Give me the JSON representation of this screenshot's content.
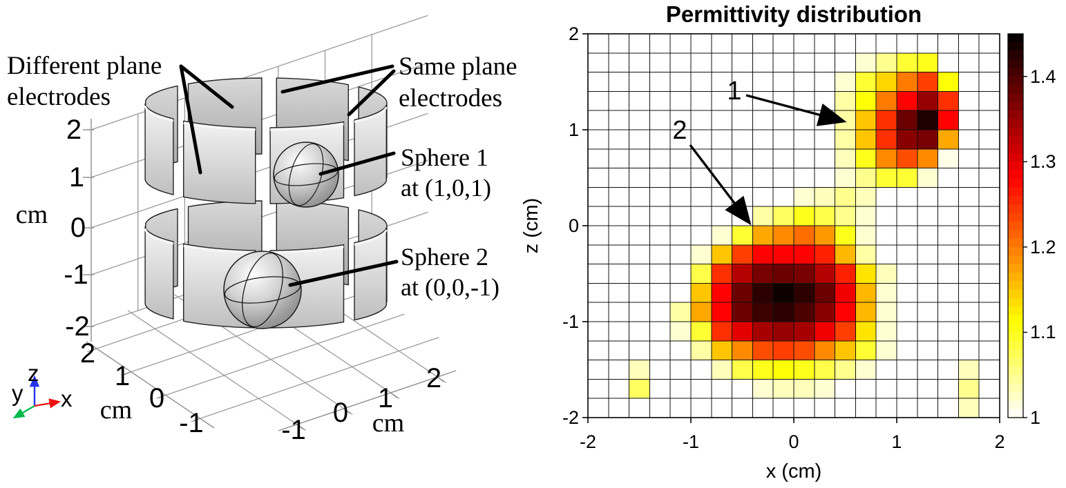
{
  "figure": {
    "left_panel": {
      "annotations": {
        "different_plane": {
          "line1": "Different plane",
          "line2": "electrodes"
        },
        "same_plane": {
          "line1": "Same plane",
          "line2": "electrodes"
        },
        "sphere1": {
          "line1": "Sphere 1",
          "line2": "at (1,0,1)"
        },
        "sphere2": {
          "line1": "Sphere 2",
          "line2": "at (0,0,-1)"
        }
      },
      "z_axis": {
        "unit": "cm",
        "ticks": [
          "2",
          "1",
          "0",
          "-1",
          "-2"
        ]
      },
      "y_axis": {
        "unit": "cm",
        "ticks": [
          "2",
          "1",
          "0",
          "-1"
        ]
      },
      "x_axis": {
        "unit": "cm",
        "ticks": [
          "-1",
          "0",
          "1",
          "2"
        ]
      },
      "triad": {
        "x_label": "x",
        "y_label": "y",
        "z_label": "z",
        "x_color": "#ee1111",
        "y_color": "#00b94d",
        "z_color": "#2233ee"
      }
    },
    "right_panel": {
      "title": "Permittivity distribution",
      "xlabel": "x (cm)",
      "ylabel": "z (cm)",
      "x_ticks": [
        "-2",
        "-1",
        "0",
        "1",
        "2"
      ],
      "z_ticks": [
        "2",
        "1",
        "0",
        "-1",
        "-2"
      ],
      "colorbar_ticks": [
        "1.4",
        "1.3",
        "1.2",
        "1.1",
        "1"
      ],
      "annotation_1": "1",
      "annotation_2": "2"
    }
  },
  "chart_data": {
    "type": "heatmap",
    "title": "Permittivity distribution",
    "xlabel": "x (cm)",
    "ylabel": "z (cm)",
    "x_range": [
      -2,
      2
    ],
    "z_range": [
      -2,
      2
    ],
    "grid_size": [
      20,
      20
    ],
    "cell_size_cm": 0.2,
    "color_range": [
      1,
      1.45
    ],
    "colormap": "reversed-hot (white -> yellow -> orange -> red -> black)",
    "colorbar_tick_values": [
      1,
      1.1,
      1.2,
      1.3,
      1.4
    ],
    "grid_on": true,
    "legend_position": "right-colorbar",
    "hotspots": [
      {
        "label": "1",
        "center_xz": [
          1.3,
          1.1
        ],
        "peak_value": 1.43
      },
      {
        "label": "2",
        "center_xz": [
          0.1,
          -0.7
        ],
        "peak_value": 1.44
      }
    ],
    "annotations": [
      {
        "label": "1",
        "text_xz": [
          -0.58,
          1.34
        ],
        "arrow_to_xz": [
          0.45,
          1.12
        ]
      },
      {
        "label": "2",
        "text_xz": [
          -1.11,
          0.93
        ],
        "arrow_to_xz": [
          -0.47,
          0.1
        ]
      }
    ],
    "values": [
      [
        1,
        1,
        1,
        1,
        1,
        1,
        1,
        1,
        1,
        1,
        1,
        1,
        1,
        1,
        1,
        1,
        1,
        1,
        1,
        1
      ],
      [
        1,
        1,
        1,
        1,
        1,
        1,
        1,
        1,
        1,
        1,
        1,
        1,
        1,
        1.02,
        1.05,
        1.09,
        1.1,
        1,
        1,
        1
      ],
      [
        1,
        1,
        1,
        1,
        1,
        1,
        1,
        1,
        1,
        1,
        1,
        1,
        1.02,
        1.09,
        1.14,
        1.2,
        1.24,
        1.11,
        1,
        1
      ],
      [
        1,
        1,
        1,
        1,
        1,
        1,
        1,
        1,
        1,
        1,
        1,
        1,
        1.04,
        1.11,
        1.2,
        1.28,
        1.35,
        1.25,
        1,
        1
      ],
      [
        1,
        1,
        1,
        1,
        1,
        1,
        1,
        1,
        1,
        1,
        1,
        1,
        1.04,
        1.15,
        1.25,
        1.38,
        1.43,
        1.28,
        1,
        1
      ],
      [
        1,
        1,
        1,
        1,
        1,
        1,
        1,
        1,
        1,
        1,
        1,
        1,
        1.04,
        1.15,
        1.25,
        1.36,
        1.37,
        1.17,
        1,
        1
      ],
      [
        1,
        1,
        1,
        1,
        1,
        1,
        1,
        1,
        1,
        1,
        1,
        1,
        1.03,
        1.1,
        1.19,
        1.23,
        1.19,
        1.01,
        1,
        1
      ],
      [
        1,
        1,
        1,
        1,
        1,
        1,
        1,
        1,
        1,
        1,
        1,
        1,
        1.02,
        1.05,
        1.09,
        1.09,
        1.02,
        1,
        1,
        1
      ],
      [
        1,
        1,
        1,
        1,
        1,
        1,
        1,
        1,
        1,
        1,
        1.02,
        1.03,
        1.05,
        1.03,
        1,
        1,
        1,
        1,
        1,
        1
      ],
      [
        1,
        1,
        1,
        1,
        1,
        1,
        1,
        1,
        1.04,
        1.07,
        1.1,
        1.08,
        1.05,
        1.02,
        1,
        1,
        1,
        1,
        1,
        1
      ],
      [
        1,
        1,
        1,
        1,
        1,
        1,
        1.02,
        1.09,
        1.17,
        1.19,
        1.21,
        1.18,
        1.1,
        1.02,
        1,
        1,
        1,
        1,
        1,
        1
      ],
      [
        1,
        1,
        1,
        1,
        1,
        1.02,
        1.15,
        1.24,
        1.28,
        1.28,
        1.28,
        1.26,
        1.16,
        1.04,
        1,
        1,
        1,
        1,
        1,
        1
      ],
      [
        1,
        1,
        1,
        1,
        1,
        1.08,
        1.25,
        1.33,
        1.37,
        1.38,
        1.37,
        1.33,
        1.26,
        1.13,
        1.03,
        1,
        1,
        1,
        1,
        1
      ],
      [
        1,
        1,
        1,
        1,
        1,
        1.15,
        1.28,
        1.38,
        1.42,
        1.44,
        1.42,
        1.38,
        1.29,
        1.16,
        1.02,
        1,
        1,
        1,
        1,
        1
      ],
      [
        1,
        1,
        1,
        1,
        1.04,
        1.17,
        1.28,
        1.38,
        1.41,
        1.42,
        1.4,
        1.36,
        1.28,
        1.16,
        1.02,
        1,
        1,
        1,
        1,
        1
      ],
      [
        1,
        1,
        1,
        1,
        1.02,
        1.09,
        1.25,
        1.3,
        1.34,
        1.35,
        1.34,
        1.29,
        1.24,
        1.13,
        1.02,
        1,
        1,
        1,
        1,
        1
      ],
      [
        1,
        1,
        1,
        1,
        1,
        1.04,
        1.15,
        1.19,
        1.23,
        1.24,
        1.23,
        1.19,
        1.15,
        1.09,
        1.02,
        1,
        1,
        1,
        1,
        1
      ],
      [
        1,
        1,
        1.03,
        1,
        1,
        1,
        1.03,
        1.08,
        1.1,
        1.11,
        1.1,
        1.08,
        1.05,
        1.02,
        1,
        1,
        1,
        1,
        1.03,
        1
      ],
      [
        1,
        1,
        1.07,
        1,
        1,
        1,
        1,
        1,
        1.02,
        1.03,
        1.03,
        1.02,
        1,
        1,
        1,
        1,
        1,
        1,
        1.05,
        1
      ],
      [
        1,
        1,
        1,
        1,
        1,
        1,
        1,
        1,
        1,
        1,
        1,
        1,
        1,
        1,
        1,
        1,
        1,
        1,
        1.03,
        1
      ]
    ]
  }
}
